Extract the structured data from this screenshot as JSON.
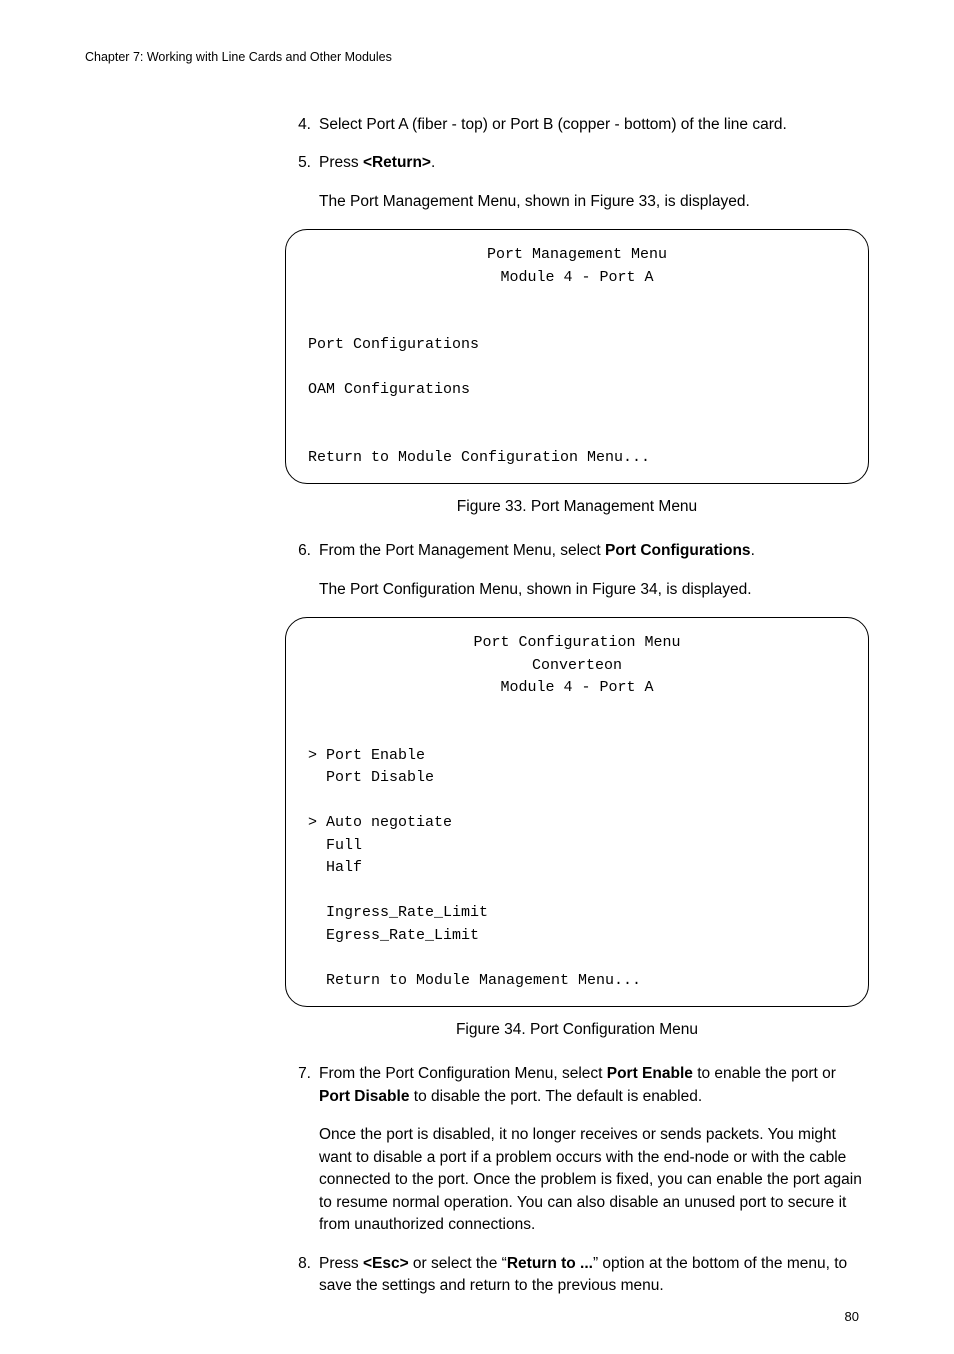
{
  "header": "Chapter 7: Working with Line Cards and Other Modules",
  "page_number": "80",
  "steps": {
    "s4": {
      "num": "4.",
      "text": "Select Port A (fiber - top) or Port B (copper - bottom) of the line card."
    },
    "s5": {
      "num": "5.",
      "line1_a": "Press ",
      "line1_b": "<Return>",
      "line1_c": ".",
      "line2": "The Port Management Menu, shown in Figure 33, is displayed."
    },
    "s6": {
      "num": "6.",
      "line1_a": "From the Port Management Menu, select ",
      "line1_b": "Port Configurations",
      "line1_c": ".",
      "line2": "The Port Configuration Menu, shown in Figure 34, is displayed."
    },
    "s7": {
      "num": "7.",
      "t1": "From the Port Configuration Menu, select ",
      "t2": "Port Enable",
      "t3": " to enable the port or ",
      "t4": "Port Disable",
      "t5": " to disable the port. The default is enabled.",
      "para2": "Once the port is disabled, it no longer receives or sends packets. You might want to disable a port if a problem occurs with the end-node or with the cable connected to the port. Once the problem is fixed, you can enable the port again to resume normal operation. You can also disable an unused port to secure it from unauthorized connections."
    },
    "s8": {
      "num": "8.",
      "t1": "Press ",
      "t2": "<Esc>",
      "t3": " or select the “",
      "t4": "Return to ...",
      "t5": "” option at the bottom of the menu, to save the settings and return to the previous menu."
    }
  },
  "figure33": {
    "title1": "Port Management Menu",
    "title2": "Module 4 - Port A",
    "l1": "Port Configurations",
    "l2": "OAM Configurations",
    "l3": "Return to Module Configuration Menu...",
    "caption": "Figure 33. Port Management Menu"
  },
  "figure34": {
    "title1": "Port Configuration Menu",
    "title2": "Converteon",
    "title3": "Module 4 - Port A",
    "l1": "> Port Enable",
    "l2": "  Port Disable",
    "l3": "> Auto negotiate",
    "l4": "  Full",
    "l5": "  Half",
    "l6": "  Ingress_Rate_Limit",
    "l7": "  Egress_Rate_Limit",
    "l8": "  Return to Module Management Menu...",
    "caption": "Figure 34. Port Configuration Menu"
  }
}
